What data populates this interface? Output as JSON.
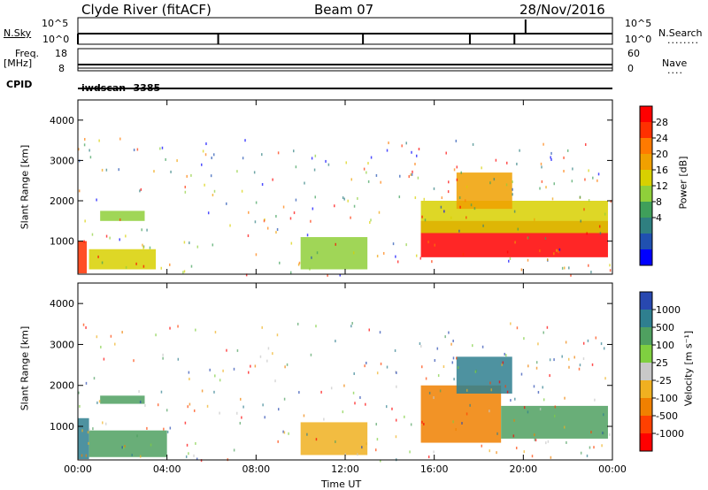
{
  "header": {
    "station": "Clyde River (fitACF)",
    "beam": "Beam 07",
    "date": "28/Nov/2016",
    "scan": "iwdscan -3385"
  },
  "aux": {
    "nsky_label": "N.Sky",
    "nsearch_label": "N.Search",
    "freq_label_1": "Freq.",
    "freq_label_2": "[MHz]",
    "nave_label": "Nave",
    "cpid_label": "CPID",
    "top_left_ticks": [
      "10^5",
      "10^0"
    ],
    "top_right_ticks": [
      "10^5",
      "10^0"
    ],
    "freq_ticks": [
      "18",
      "8"
    ],
    "nave_ticks": [
      "60",
      "0"
    ]
  },
  "axes": {
    "y_label": "Slant Range [km]",
    "y_ticks": [
      "4000",
      "3000",
      "2000",
      "1000"
    ],
    "x_label": "Time UT",
    "x_ticks": [
      "00:00",
      "04:00",
      "08:00",
      "12:00",
      "16:00",
      "20:00",
      "00:00"
    ]
  },
  "power_scale": {
    "label": "Power [dB]",
    "ticks": [
      "28",
      "24",
      "20",
      "16",
      "12",
      "8",
      "4"
    ],
    "colors": [
      "#ff0000",
      "#ff3000",
      "#ff7a00",
      "#f0a000",
      "#d8d000",
      "#8fcf3a",
      "#3f9f5a",
      "#2f7f80",
      "#2050b0",
      "#0000ff"
    ]
  },
  "velocity_scale": {
    "label": "Velocity [m s⁻¹]",
    "ticks": [
      "1000",
      "500",
      "100",
      "25",
      "-25",
      "-100",
      "-500",
      "-1000"
    ],
    "colors": [
      "#2848b0",
      "#2f7f8f",
      "#4fa060",
      "#7fcf40",
      "#c8c8c8",
      "#f0b020",
      "#f08000",
      "#ff4000",
      "#ff0000"
    ]
  },
  "chart_data": {
    "type": "heatmap",
    "x_range_hours": [
      0,
      24
    ],
    "y_range_km": [
      180,
      4500
    ],
    "panels": [
      {
        "name": "Power",
        "regions": [
          {
            "t0": 0.0,
            "t1": 0.4,
            "r0": 200,
            "r1": 1000,
            "level": 24
          },
          {
            "t0": 0.5,
            "t1": 3.5,
            "r0": 300,
            "r1": 800,
            "level": 12
          },
          {
            "t0": 1.0,
            "t1": 3.0,
            "r0": 1500,
            "r1": 1750,
            "level": 8
          },
          {
            "t0": 10.0,
            "t1": 13.0,
            "r0": 300,
            "r1": 1100,
            "level": 10
          },
          {
            "t0": 15.4,
            "t1": 23.8,
            "r0": 600,
            "r1": 1500,
            "level": 28
          },
          {
            "t0": 15.4,
            "t1": 23.8,
            "r0": 1200,
            "r1": 2000,
            "level": 14
          },
          {
            "t0": 17.0,
            "t1": 19.5,
            "r0": 1800,
            "r1": 2700,
            "level": 18
          }
        ]
      },
      {
        "name": "Velocity",
        "regions": [
          {
            "t0": 0.0,
            "t1": 0.5,
            "r0": 200,
            "r1": 1200,
            "level": 500
          },
          {
            "t0": 0.5,
            "t1": 4.0,
            "r0": 250,
            "r1": 900,
            "level": 100
          },
          {
            "t0": 1.0,
            "t1": 3.0,
            "r0": 1550,
            "r1": 1750,
            "level": 100
          },
          {
            "t0": 10.0,
            "t1": 13.0,
            "r0": 300,
            "r1": 1100,
            "level": -100
          },
          {
            "t0": 15.4,
            "t1": 19.0,
            "r0": 600,
            "r1": 2000,
            "level": -500
          },
          {
            "t0": 19.0,
            "t1": 23.8,
            "r0": 700,
            "r1": 1500,
            "level": 100
          },
          {
            "t0": 17.0,
            "t1": 19.5,
            "r0": 1800,
            "r1": 2700,
            "level": 500
          }
        ]
      }
    ]
  }
}
